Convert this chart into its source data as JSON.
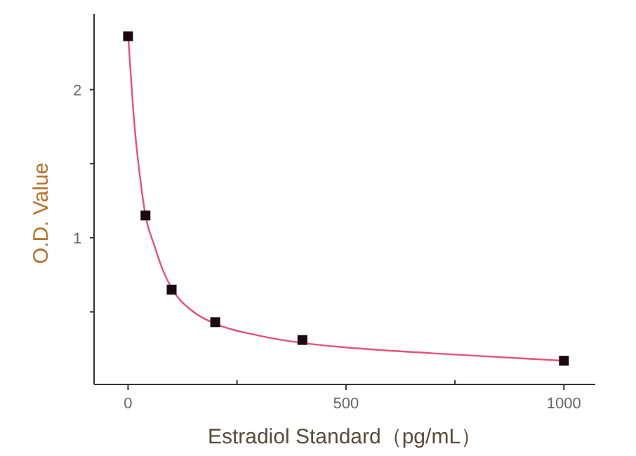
{
  "chart_data": {
    "type": "scatter",
    "xlabel": "Estradiol Standard（pg/mL）",
    "ylabel": "O.D. Value",
    "xlim": [
      -78,
      1072
    ],
    "ylim": [
      0.01,
      2.51
    ],
    "xticks": [
      0,
      {
        "value": 250,
        "label": null
      },
      500,
      {
        "value": 750,
        "label": null
      },
      1000
    ],
    "yticks": [
      {
        "value": 0.5,
        "label": null
      },
      1,
      {
        "value": 1.5,
        "label": null
      },
      2
    ],
    "grid": false,
    "series": [
      {
        "type": "line",
        "color": "#e8507a",
        "marker": "none",
        "line_style": "solid",
        "x": [
          0,
          15,
          30,
          40,
          60,
          80,
          100,
          150,
          200,
          300,
          400,
          500,
          700,
          1000
        ],
        "values": [
          2.38,
          1.75,
          1.35,
          1.15,
          0.95,
          0.78,
          0.66,
          0.5,
          0.42,
          0.34,
          0.29,
          0.26,
          0.22,
          0.17
        ]
      },
      {
        "color": "#1a0a10",
        "marker": "square",
        "x": [
          0,
          40,
          100,
          200,
          400,
          1000
        ],
        "values": [
          2.36,
          1.15,
          0.65,
          0.43,
          0.31,
          0.17
        ]
      }
    ]
  }
}
